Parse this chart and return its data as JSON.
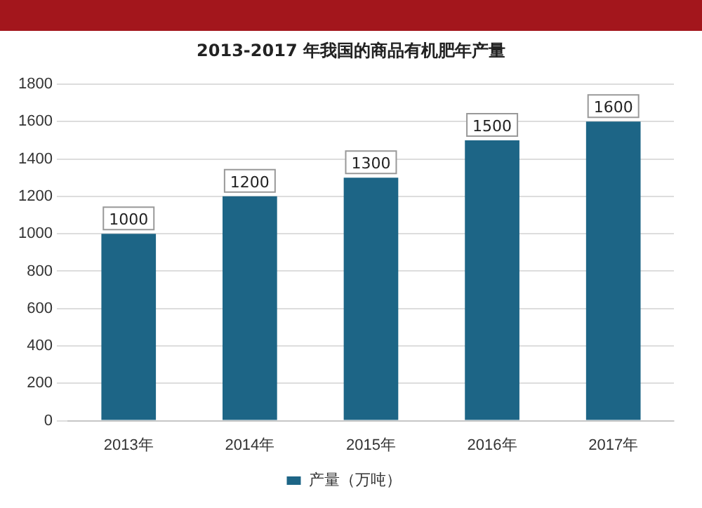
{
  "chart_data": {
    "type": "bar",
    "title": "2013-2017 年我国的商品有机肥年产量",
    "categories": [
      "2013年",
      "2014年",
      "2015年",
      "2016年",
      "2017年"
    ],
    "series": [
      {
        "name": "产量（万吨）",
        "color": "#1d6586",
        "values": [
          1000,
          1200,
          1300,
          1500,
          1600
        ]
      }
    ],
    "ylim": [
      0,
      1800
    ],
    "yticks": [
      0,
      200,
      400,
      600,
      800,
      1000,
      1200,
      1400,
      1600,
      1800
    ],
    "grid": "y",
    "legend": "bottom",
    "data_labels": true
  }
}
